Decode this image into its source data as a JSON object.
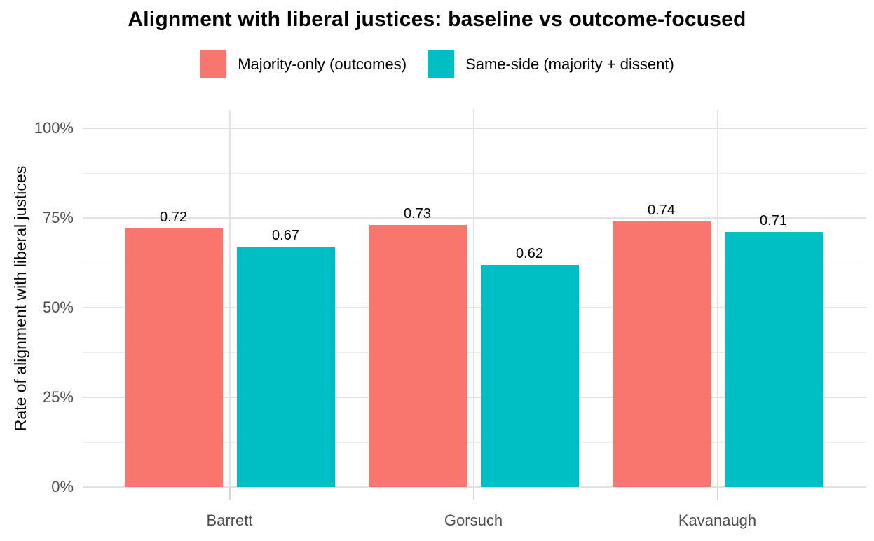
{
  "title": "Alignment with liberal justices: baseline vs outcome-focused",
  "y_axis": {
    "title": "Rate of alignment with liberal justices",
    "tick_labels": [
      "0%",
      "25%",
      "50%",
      "75%",
      "100%"
    ]
  },
  "x_axis": {
    "categories": [
      "Barrett",
      "Gorsuch",
      "Kavanaugh"
    ]
  },
  "legend": {
    "items": [
      {
        "label": "Majority-only (outcomes)",
        "color": "#F8766D"
      },
      {
        "label": "Same-side (majority + dissent)",
        "color": "#00BFC4"
      }
    ]
  },
  "colors": {
    "series_majority_only": "#F8766D",
    "series_same_side": "#00BFC4",
    "major_gridline": "#e2e2e2",
    "minor_gridline": "#ebebeb",
    "axis_text": "#4d4d4d"
  },
  "chart_data": {
    "type": "bar",
    "categories": [
      "Barrett",
      "Gorsuch",
      "Kavanaugh"
    ],
    "series": [
      {
        "name": "Majority-only (outcomes)",
        "color": "#F8766D",
        "values": [
          0.72,
          0.73,
          0.74
        ]
      },
      {
        "name": "Same-side (majority + dissent)",
        "color": "#00BFC4",
        "values": [
          0.67,
          0.62,
          0.71
        ]
      }
    ],
    "value_labels": [
      [
        "0.72",
        "0.73",
        "0.74"
      ],
      [
        "0.67",
        "0.62",
        "0.71"
      ]
    ],
    "title": "Alignment with liberal justices: baseline vs outcome-focused",
    "xlabel": "",
    "ylabel": "Rate of alignment with liberal justices",
    "ylim": [
      0,
      1.05
    ],
    "y_ticks": [
      0,
      0.25,
      0.5,
      0.75,
      1.0
    ],
    "y_tick_labels": [
      "0%",
      "25%",
      "50%",
      "75%",
      "100%"
    ],
    "y_minor_ticks": [
      0.125,
      0.375,
      0.625,
      0.875
    ],
    "grid": true,
    "legend_position": "top",
    "bar_orientation": "vertical"
  }
}
